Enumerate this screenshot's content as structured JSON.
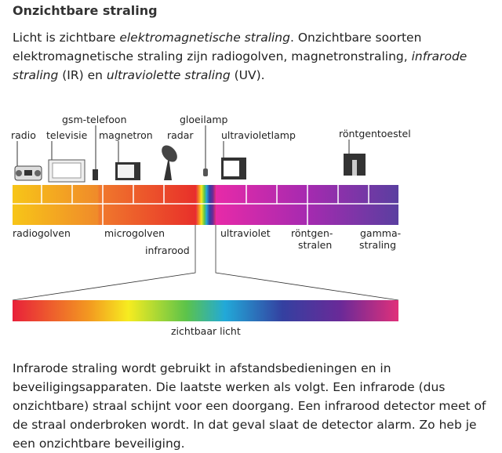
{
  "title": "Onzichtbare straling",
  "intro": {
    "t1": "Licht is zichtbare ",
    "i1": "elektromagnetische straling",
    "t2": ". Onzichtbare soorten elektromagnetische straling zijn radiogolven, magnetronstraling, ",
    "i2": "infrarode straling",
    "t3": " (IR) en ",
    "i3": "ultraviolette straling",
    "t4": " (UV)."
  },
  "devices": [
    "radio",
    "televisie",
    "gsm-telefoon",
    "magnetron",
    "radar",
    "gloeilamp",
    "ultravioletlamp",
    "röntgentoestel"
  ],
  "bands": [
    "radiogolven",
    "microgolven",
    "infrarood",
    "ultraviolet",
    "röntgen-",
    "stralen",
    "gamma-",
    "straling"
  ],
  "visible_label": "zichtbaar licht",
  "body": "Infrarode straling wordt gebruikt in afstandsbedieningen en in beveiligingsapparaten. Die laatste werken als volgt. Een infrarode (dus onzichtbare) straal schijnt voor een doorgang. Een infrarood detector meet of de straal onderbroken wordt. In dat geval slaat de detector alarm. Zo heb je een onzichtbare beveiliging.",
  "colors": {
    "radio": "#f6c21a",
    "micro": "#ea3a2a",
    "uv": "#e52aa6",
    "gamma": "#5a3fa0"
  }
}
